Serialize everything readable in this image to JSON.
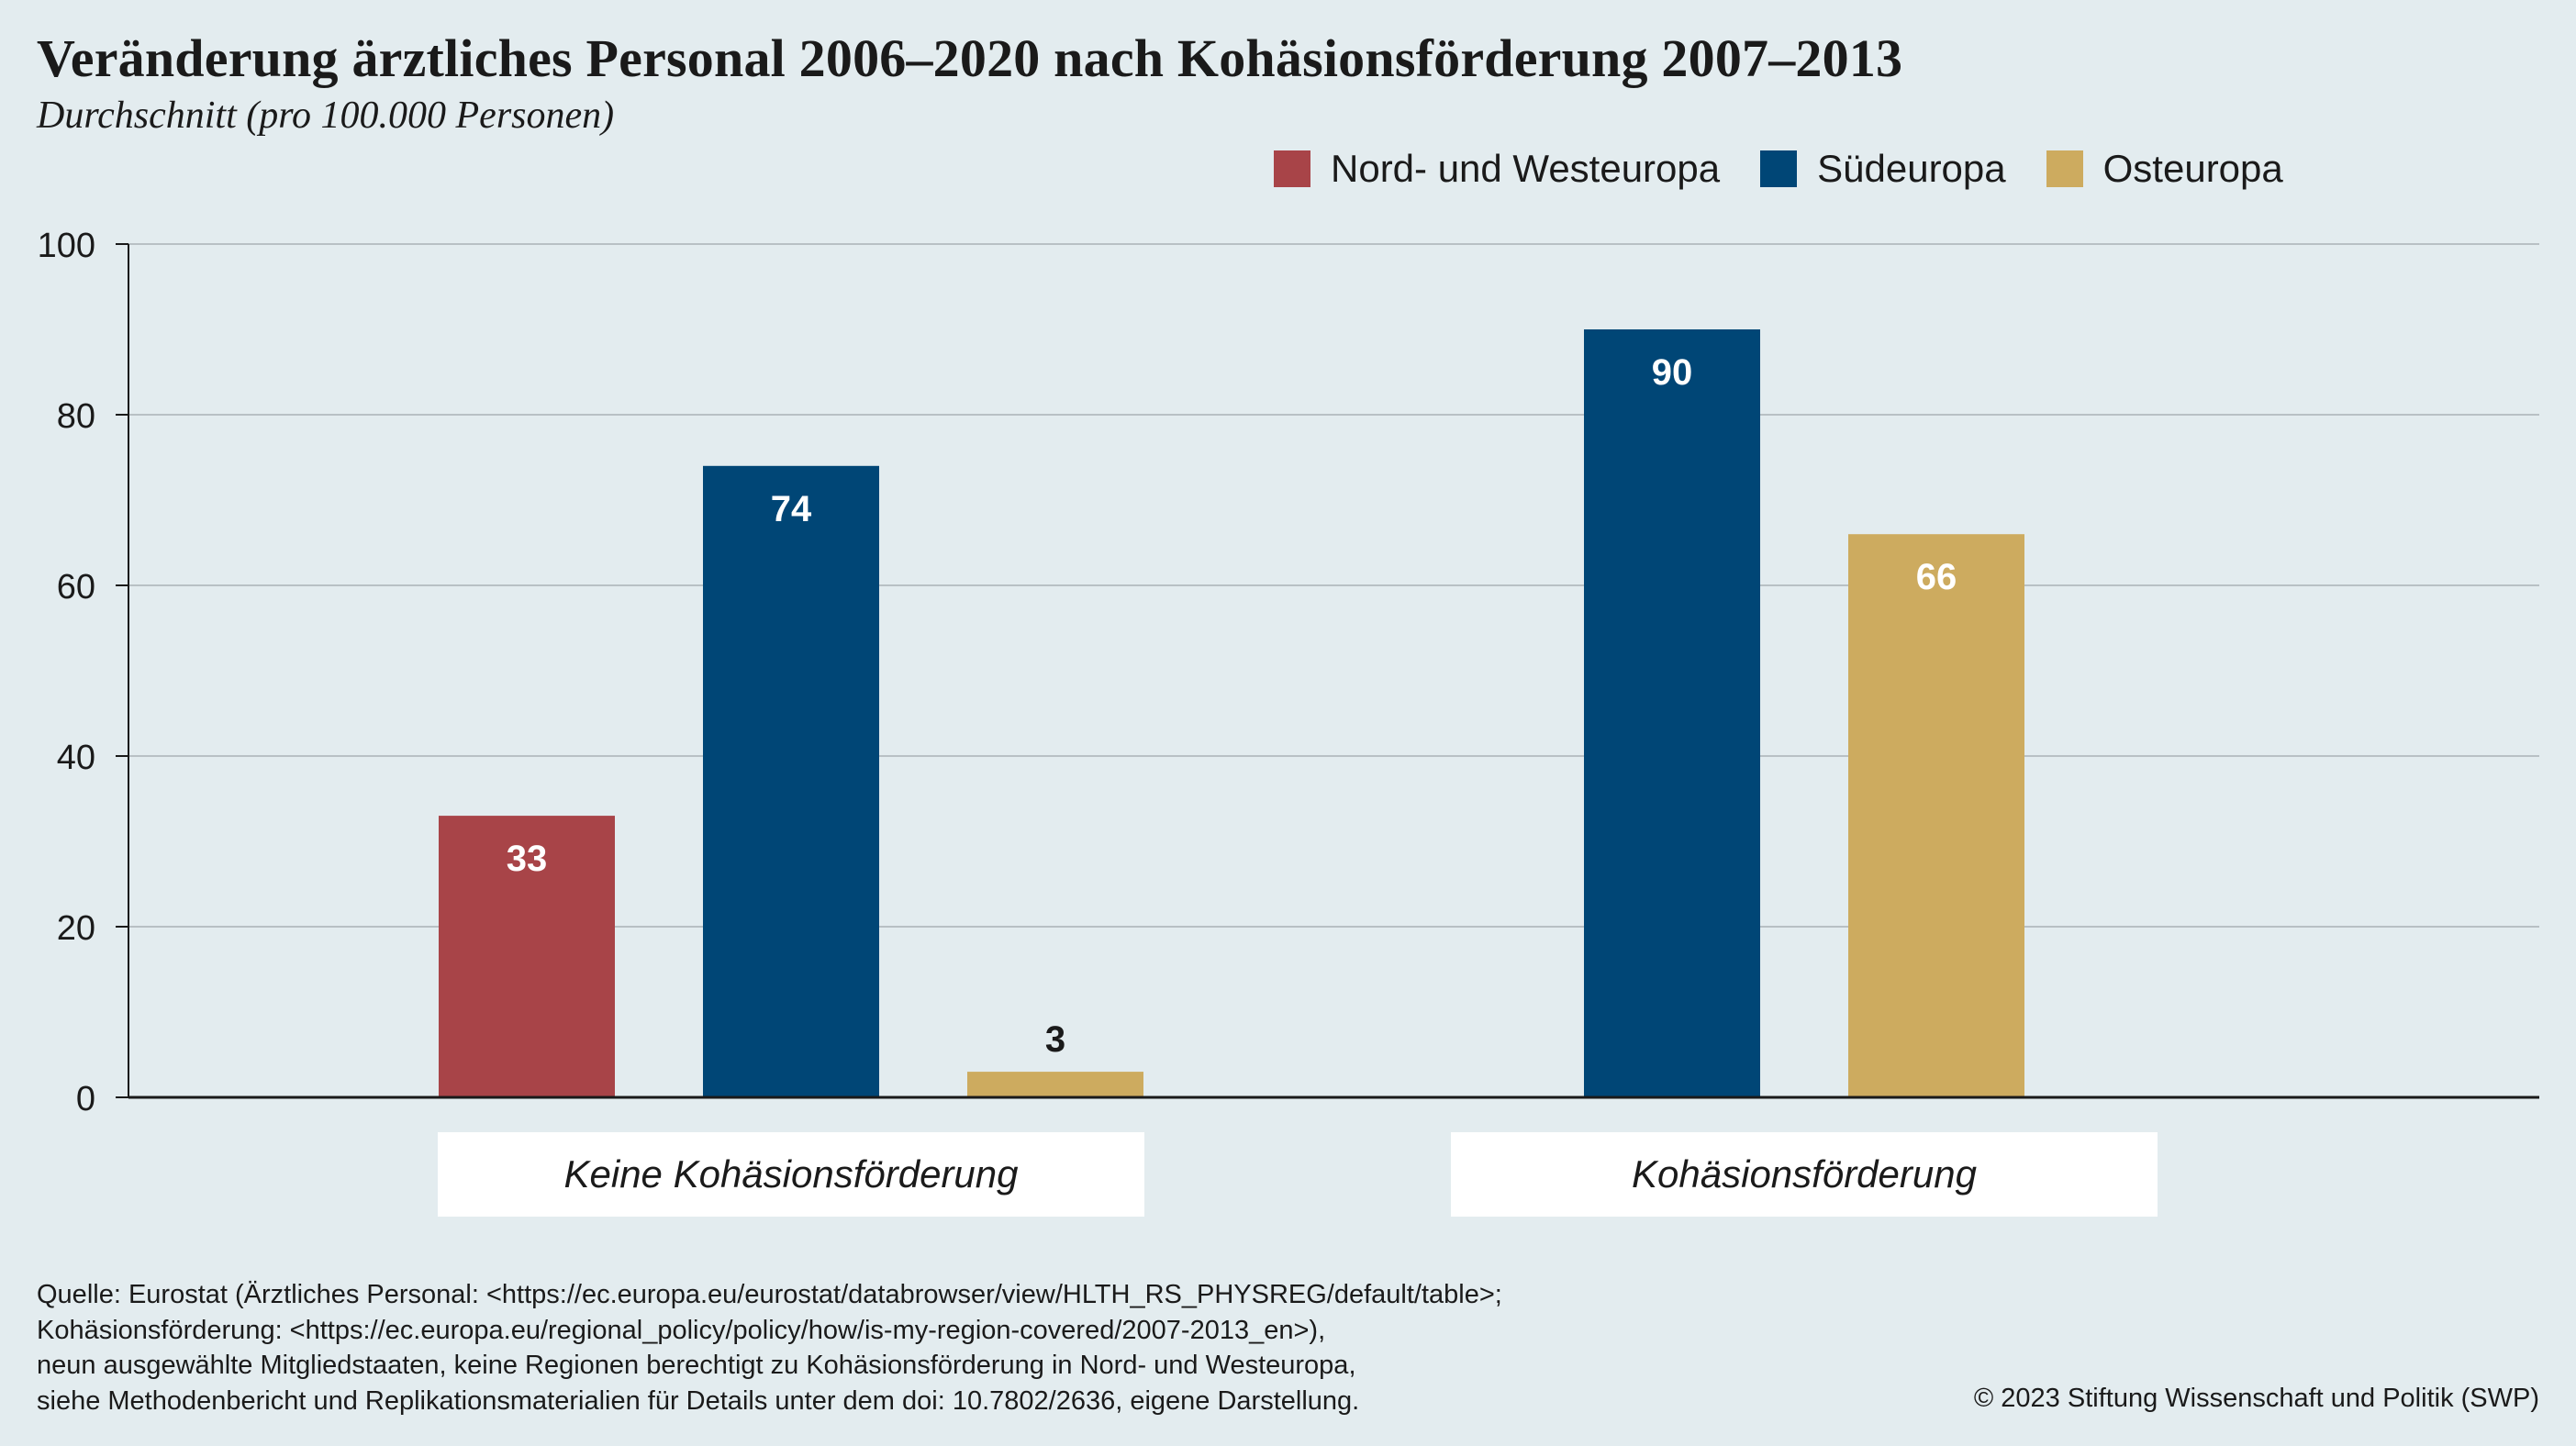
{
  "title": "Veränderung ärztliches Personal 2006–2020 nach Kohäsionsförderung 2007–2013",
  "subtitle": "Durchschnitt (pro 100.000 Personen)",
  "colors": {
    "nord_west": "#a84448",
    "sued": "#004676",
    "ost": "#cdab5f",
    "background": "#e3ecef",
    "grid": "#b8c0c4",
    "axis": "#1a1a1a"
  },
  "chart_data": {
    "type": "bar",
    "title": "Veränderung ärztliches Personal 2006–2020 nach Kohäsionsförderung 2007–2013",
    "subtitle": "Durchschnitt (pro 100.000 Personen)",
    "categories": [
      "Keine Kohäsionsförderung",
      "Kohäsionsförderung"
    ],
    "series": [
      {
        "name": "Nord- und Westeuropa",
        "color": "#a84448",
        "values": [
          33,
          null
        ]
      },
      {
        "name": "Südeuropa",
        "color": "#004676",
        "values": [
          74,
          90
        ]
      },
      {
        "name": "Osteuropa",
        "color": "#cdab5f",
        "values": [
          3,
          66
        ]
      }
    ],
    "value_labels": [
      [
        "33",
        null
      ],
      [
        "74",
        "90"
      ],
      [
        "3",
        "66"
      ]
    ],
    "ylim": [
      0,
      100
    ],
    "yticks": [
      0,
      20,
      40,
      60,
      80,
      100
    ],
    "grid": true,
    "legend": "top-right"
  },
  "legend": [
    {
      "label": "Nord- und Westeuropa",
      "color": "#a84448"
    },
    {
      "label": "Südeuropa",
      "color": "#004676"
    },
    {
      "label": "Osteuropa",
      "color": "#cdab5f"
    }
  ],
  "footer": {
    "lines": [
      "Quelle: Eurostat (Ärztliches Personal: <https://ec.europa.eu/eurostat/databrowser/view/HLTH_RS_PHYSREG/default/table>;",
      "Kohäsionsförderung: <https://ec.europa.eu/regional_policy/policy/how/is-my-region-covered/2007-2013_en>),",
      "neun ausgewählte Mitgliedstaaten, keine Regionen berechtigt zu Kohäsionsförderung in Nord- und Westeuropa,",
      "siehe Methodenbericht und Replikationsmaterialien für Details unter dem doi: 10.7802/2636, eigene Darstellung."
    ],
    "copyright": "© 2023 Stiftung Wissenschaft und Politik (SWP)"
  }
}
